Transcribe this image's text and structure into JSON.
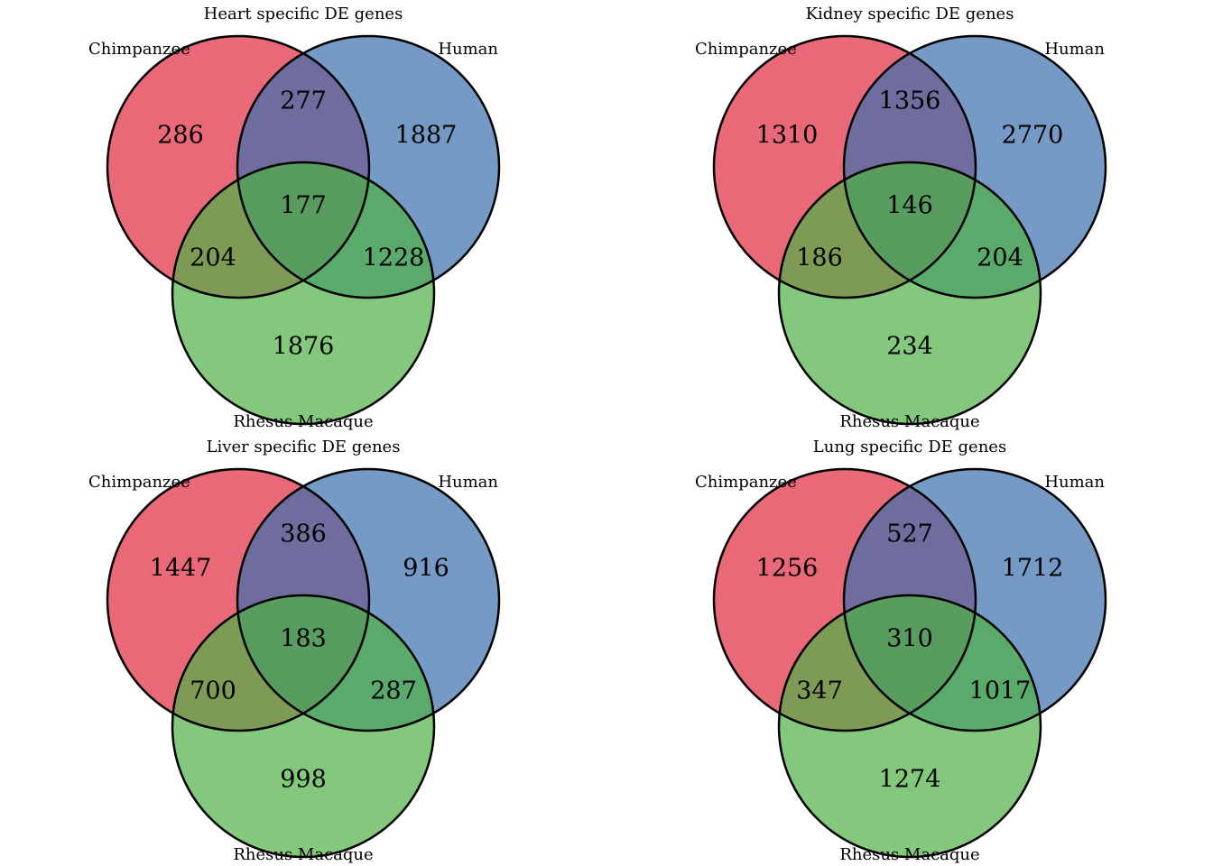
{
  "colors": {
    "chimpanzee": "#e0293e",
    "human": "#3a6fad",
    "rhesus_macaque": "#4fb045"
  },
  "chart_data": [
    {
      "type": "venn3",
      "title": "Heart specific DE genes",
      "sets": [
        "Chimpanzee",
        "Human",
        "Rhesus Macaque"
      ],
      "regions": {
        "chimpanzee_only": 286,
        "human_only": 1887,
        "rhesus_only": 1876,
        "chimpanzee_human": 277,
        "chimpanzee_rhesus": 204,
        "human_rhesus": 1228,
        "all_three": 177
      }
    },
    {
      "type": "venn3",
      "title": "Kidney specific DE genes",
      "sets": [
        "Chimpanzee",
        "Human",
        "Rhesus Macaque"
      ],
      "regions": {
        "chimpanzee_only": 1310,
        "human_only": 2770,
        "rhesus_only": 234,
        "chimpanzee_human": 1356,
        "chimpanzee_rhesus": 186,
        "human_rhesus": 204,
        "all_three": 146
      }
    },
    {
      "type": "venn3",
      "title": "Liver specific DE genes",
      "sets": [
        "Chimpanzee",
        "Human",
        "Rhesus Macaque"
      ],
      "regions": {
        "chimpanzee_only": 1447,
        "human_only": 916,
        "rhesus_only": 998,
        "chimpanzee_human": 386,
        "chimpanzee_rhesus": 700,
        "human_rhesus": 287,
        "all_three": 183
      }
    },
    {
      "type": "venn3",
      "title": "Lung specific DE genes",
      "sets": [
        "Chimpanzee",
        "Human",
        "Rhesus Macaque"
      ],
      "regions": {
        "chimpanzee_only": 1256,
        "human_only": 1712,
        "rhesus_only": 1274,
        "chimpanzee_human": 527,
        "chimpanzee_rhesus": 347,
        "human_rhesus": 1017,
        "all_three": 310
      }
    }
  ]
}
